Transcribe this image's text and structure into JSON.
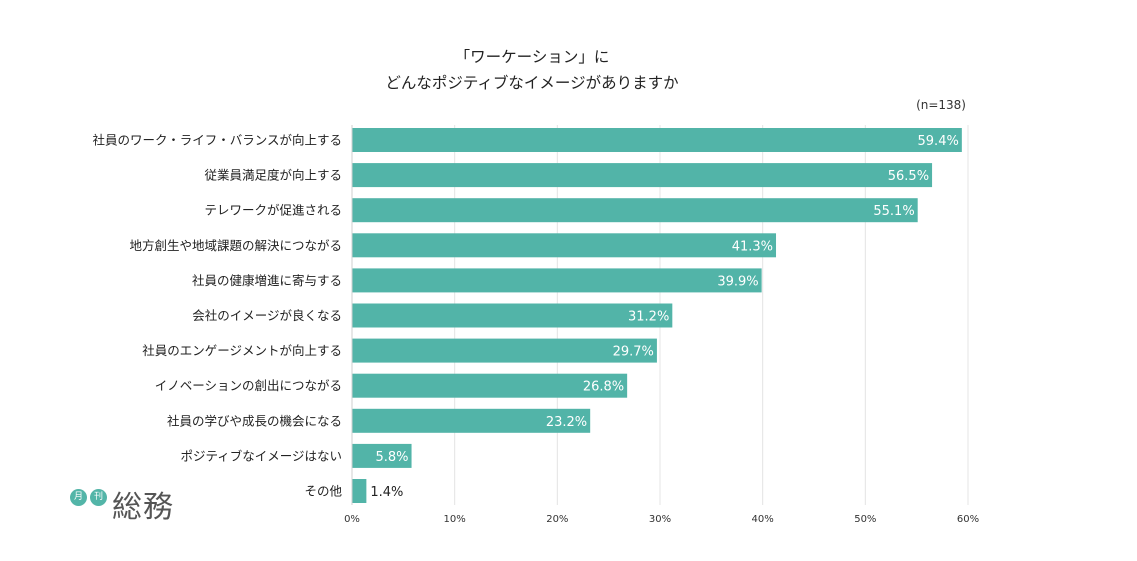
{
  "title_lines": [
    "「ワーケーション」に",
    "どんなポジティブなイメージがありますか"
  ],
  "sample_note": "(n=138)",
  "logo": {
    "badge1": "月",
    "badge2": "刊",
    "text": "総務"
  },
  "colors": {
    "bar": "#52b4a8",
    "grid": "#e4e4e4",
    "label_inside": "#ffffff",
    "label_outside": "#222222"
  },
  "chart_data": {
    "type": "bar",
    "orientation": "horizontal",
    "title": "「ワーケーション」にどんなポジティブなイメージがありますか",
    "xlim": [
      0,
      60
    ],
    "x_ticks": [
      "0%",
      "10%",
      "20%",
      "30%",
      "40%",
      "50%",
      "60%"
    ],
    "grid": true,
    "legend": "none",
    "categories": [
      "社員のワーク・ライフ・バランスが向上する",
      "従業員満足度が向上する",
      "テレワークが促進される",
      "地方創生や地域課題の解決につながる",
      "社員の健康増進に寄与する",
      "会社のイメージが良くなる",
      "社員のエンゲージメントが向上する",
      "イノベーションの創出につながる",
      "社員の学びや成長の機会になる",
      "ポジティブなイメージはない",
      "その他"
    ],
    "values": [
      59.4,
      56.5,
      55.1,
      41.3,
      39.9,
      31.2,
      29.7,
      26.8,
      23.2,
      5.8,
      1.4
    ],
    "value_labels": [
      "59.4%",
      "56.5%",
      "55.1%",
      "41.3%",
      "39.9%",
      "31.2%",
      "29.7%",
      "26.8%",
      "23.2%",
      "5.8%",
      "1.4%"
    ]
  }
}
